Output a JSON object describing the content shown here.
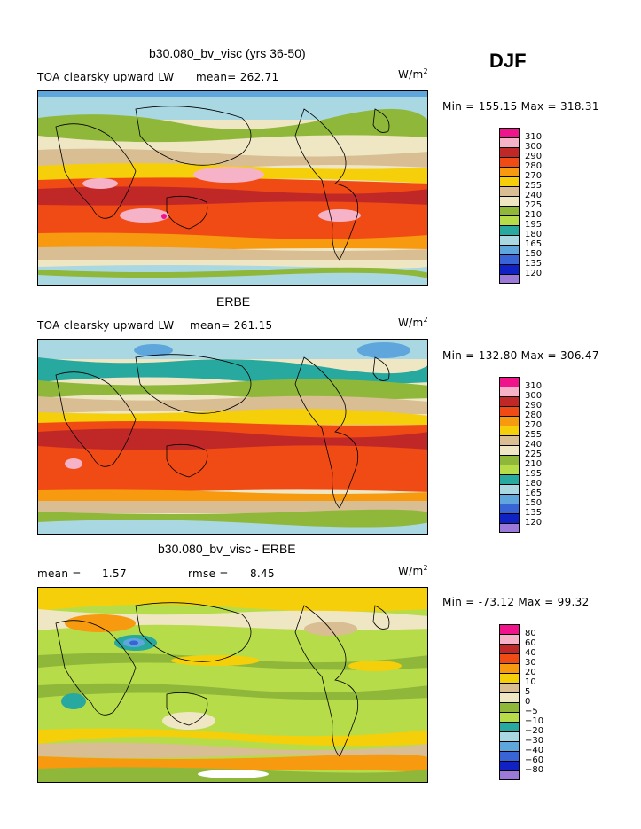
{
  "header": {
    "season": "DJF"
  },
  "panels": [
    {
      "title": "b30.080_bv_visc (yrs 36-50)",
      "field": "TOA clearsky upward LW",
      "stat": "mean= 262.71",
      "units": "W/m",
      "units_exp": "2",
      "minmax": "Min = 155.15 Max = 318.31",
      "legend": [
        "310",
        "300",
        "290",
        "280",
        "270",
        "255",
        "240",
        "225",
        "210",
        "195",
        "180",
        "165",
        "150",
        "135",
        "120"
      ],
      "colors": [
        "#f0148c",
        "#f6b3c8",
        "#c02828",
        "#f04b14",
        "#f79a0f",
        "#f5cf0a",
        "#d9bd93",
        "#efe6c4",
        "#8fb83a",
        "#b7dc4a",
        "#28a99f",
        "#a9d7e2",
        "#5fa6dd",
        "#3964d6",
        "#1022c4",
        "#9a79d9"
      ]
    },
    {
      "title": "ERBE",
      "field": "TOA clearsky upward LW",
      "stat": "mean= 261.15",
      "units": "W/m",
      "units_exp": "2",
      "minmax": "Min = 132.80 Max = 306.47",
      "legend": [
        "310",
        "300",
        "290",
        "280",
        "270",
        "255",
        "240",
        "225",
        "210",
        "195",
        "180",
        "165",
        "150",
        "135",
        "120"
      ],
      "colors": [
        "#f0148c",
        "#f6b3c8",
        "#c02828",
        "#f04b14",
        "#f79a0f",
        "#f5cf0a",
        "#d9bd93",
        "#efe6c4",
        "#8fb83a",
        "#b7dc4a",
        "#28a99f",
        "#a9d7e2",
        "#5fa6dd",
        "#3964d6",
        "#1022c4",
        "#9a79d9"
      ]
    },
    {
      "title": "b30.080_bv_visc - ERBE",
      "mean_label": "mean =",
      "mean_value": "1.57",
      "rmse_label": "rmse =",
      "rmse_value": "8.45",
      "units": "W/m",
      "units_exp": "2",
      "minmax": "Min = -73.12 Max =  99.32",
      "legend": [
        "80",
        "60",
        "40",
        "30",
        "20",
        "10",
        "5",
        "0",
        "−5",
        "−10",
        "−20",
        "−30",
        "−40",
        "−60",
        "−80"
      ],
      "colors": [
        "#f0148c",
        "#f6b3c8",
        "#c02828",
        "#f04b14",
        "#f79a0f",
        "#f5cf0a",
        "#d9bd93",
        "#efe6c4",
        "#8fb83a",
        "#b7dc4a",
        "#28a99f",
        "#a9d7e2",
        "#5fa6dd",
        "#3964d6",
        "#1022c4",
        "#9a79d9"
      ]
    }
  ]
}
